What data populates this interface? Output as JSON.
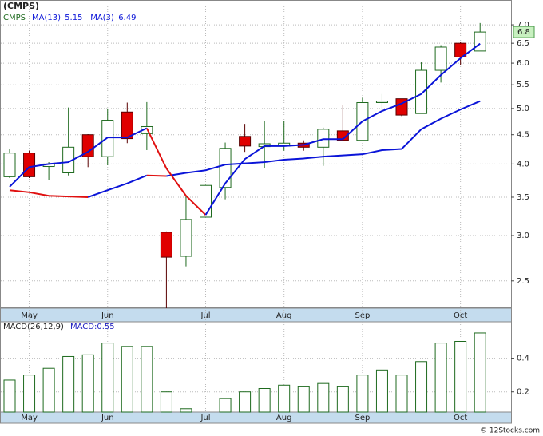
{
  "chart_data": [
    {
      "type": "candlestick",
      "title": "(CMPS)",
      "symbol": "CMPS",
      "categories": [
        null,
        "May",
        null,
        null,
        null,
        "Jun",
        null,
        null,
        null,
        null,
        "Jul",
        null,
        null,
        null,
        "Aug",
        null,
        null,
        null,
        "Sep",
        null,
        null,
        null,
        null,
        "Oct",
        null
      ],
      "open": [
        3.8,
        4.18,
        3.96,
        3.86,
        4.5,
        4.12,
        4.93,
        4.52,
        3.04,
        2.76,
        3.23,
        3.64,
        4.47,
        4.29,
        4.3,
        4.35,
        4.28,
        4.57,
        4.4,
        5.12,
        5.2,
        4.9,
        5.83,
        6.5,
        6.3
      ],
      "high": [
        4.25,
        4.22,
        4.03,
        5.02,
        4.51,
        5.0,
        5.12,
        5.13,
        3.05,
        3.52,
        3.68,
        4.36,
        4.7,
        4.75,
        4.75,
        4.4,
        4.63,
        5.07,
        5.22,
        5.3,
        5.2,
        6.02,
        6.45,
        6.53,
        7.05
      ],
      "low": [
        3.78,
        3.78,
        3.75,
        3.82,
        3.95,
        3.98,
        4.35,
        4.23,
        2.24,
        2.65,
        3.23,
        3.47,
        4.2,
        3.93,
        4.22,
        4.22,
        3.97,
        4.4,
        4.4,
        4.95,
        4.85,
        4.9,
        5.55,
        5.95,
        6.3
      ],
      "close": [
        4.18,
        3.8,
        4.0,
        4.28,
        4.12,
        4.77,
        4.43,
        4.65,
        2.75,
        3.2,
        3.67,
        4.26,
        4.3,
        4.34,
        4.35,
        4.28,
        4.6,
        4.4,
        5.12,
        5.15,
        4.87,
        5.83,
        6.4,
        6.15,
        6.8
      ],
      "up_color": "#ffffff",
      "up_edge_color": "#1e6a1e",
      "down_color": "#e00000",
      "down_edge_color": "#5a0000",
      "last_price": 6.8,
      "last_price_color": "#c8f0c0",
      "log_scale": true,
      "ylim": [
        2.24,
        7.3
      ],
      "yticks": [
        {
          "value": 7,
          "label": "7.0"
        },
        6.5,
        {
          "value": 6,
          "label": "6.0"
        },
        5.5,
        {
          "value": 5,
          "label": "5.0"
        },
        4.5,
        {
          "value": 4,
          "label": "4.0"
        },
        3.5,
        {
          "value": 3,
          "label": "3.0"
        },
        2.5
      ],
      "grid": true,
      "series": [
        {
          "name": "MA(13)",
          "legend_value": 5.15,
          "color": "#0a14d8",
          "decline_color": "#e01010",
          "values": [
            3.6,
            3.57,
            3.52,
            3.51,
            3.5,
            3.6,
            3.7,
            3.82,
            3.81,
            3.86,
            3.9,
            3.99,
            4.01,
            4.03,
            4.07,
            4.09,
            4.12,
            4.14,
            4.16,
            4.23,
            4.25,
            4.6,
            4.8,
            4.98,
            5.15
          ]
        },
        {
          "name": "MA(3)",
          "legend_value": 6.49,
          "color": "#0a14d8",
          "decline_color": "#e01010",
          "values": [
            3.65,
            3.95,
            4.0,
            4.03,
            4.2,
            4.45,
            4.45,
            4.62,
            3.93,
            3.52,
            3.26,
            3.7,
            4.08,
            4.3,
            4.3,
            4.32,
            4.42,
            4.42,
            4.75,
            4.95,
            5.1,
            5.3,
            5.72,
            6.12,
            6.49
          ]
        }
      ]
    },
    {
      "type": "bar",
      "title": "MACD(26,12,9)",
      "legend": "MACD:0.55",
      "categories": [
        null,
        "May",
        null,
        null,
        null,
        "Jun",
        null,
        null,
        null,
        null,
        "Jul",
        null,
        null,
        null,
        "Aug",
        null,
        null,
        null,
        "Sep",
        null,
        null,
        null,
        null,
        "Oct",
        null
      ],
      "values": [
        0.27,
        0.3,
        0.34,
        0.41,
        0.42,
        0.49,
        0.47,
        0.47,
        0.2,
        0.1,
        0.07,
        0.16,
        0.2,
        0.22,
        0.24,
        0.23,
        0.25,
        0.23,
        0.3,
        0.33,
        0.3,
        0.38,
        0.49,
        0.5,
        0.55
      ],
      "color": "#ffffff",
      "edge_color": "#1e6a1e",
      "ylim": [
        0.08,
        0.64
      ],
      "yticks": [
        0.2,
        0.4
      ],
      "grid": true
    }
  ],
  "footer": "© 12Stocks.com"
}
